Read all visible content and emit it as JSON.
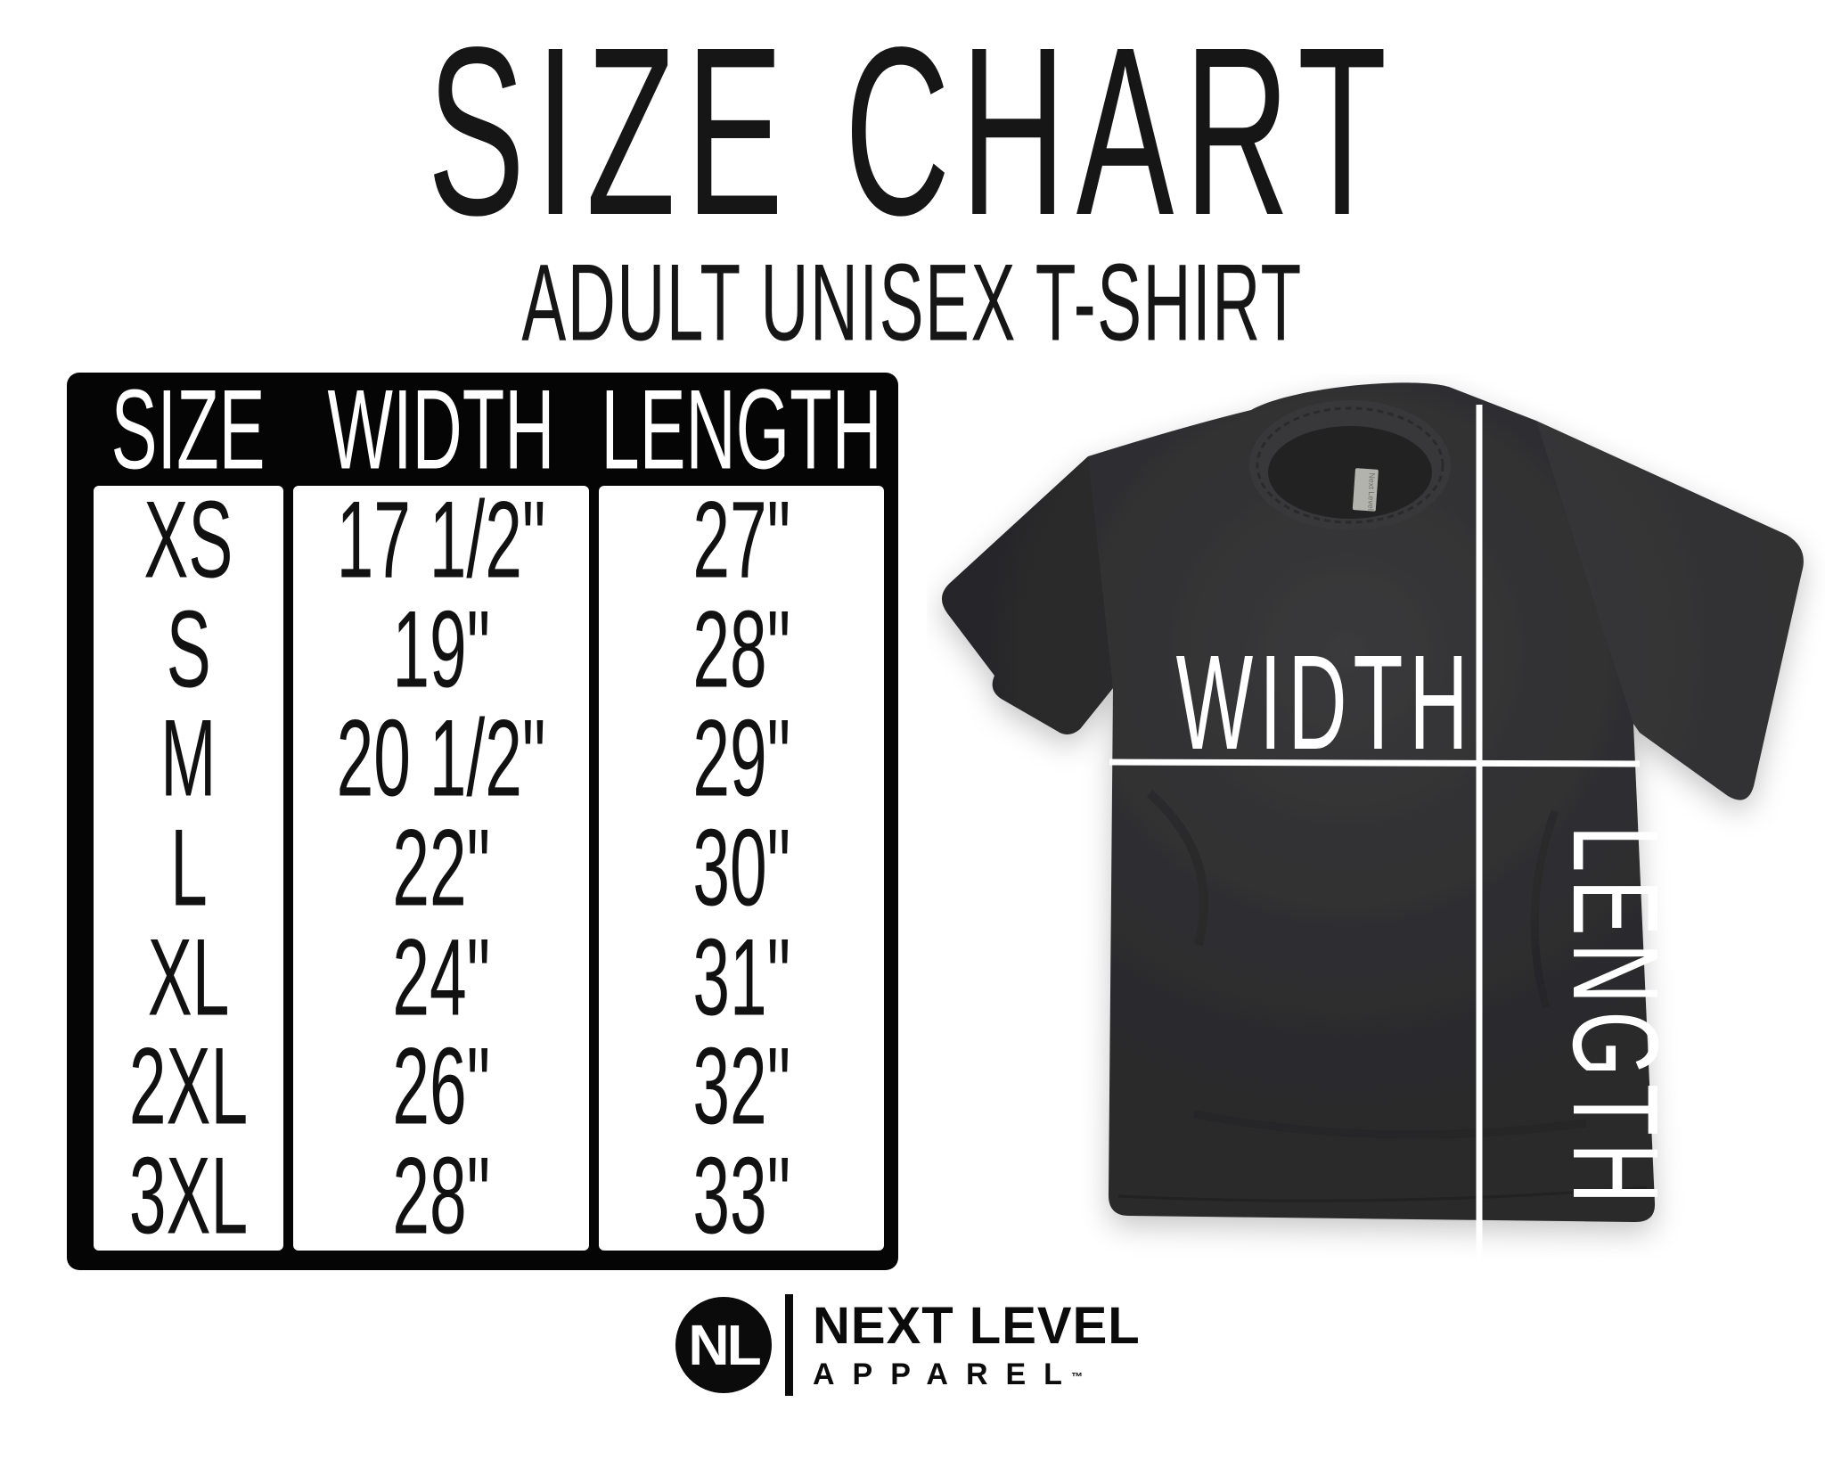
{
  "title": "SIZE CHART",
  "subtitle": "ADULT UNISEX T-SHIRT",
  "table": {
    "columns": [
      "SIZE",
      "WIDTH",
      "LENGTH"
    ],
    "rows": [
      {
        "size": "XS",
        "width": "17 1/2\"",
        "length": "27\""
      },
      {
        "size": "S",
        "width": "19\"",
        "length": "28\""
      },
      {
        "size": "M",
        "width": "20 1/2\"",
        "length": "29\""
      },
      {
        "size": "L",
        "width": "22\"",
        "length": "30\""
      },
      {
        "size": "XL",
        "width": "24\"",
        "length": "31\""
      },
      {
        "size": "2XL",
        "width": "26\"",
        "length": "32\""
      },
      {
        "size": "3XL",
        "width": "28\"",
        "length": "33\""
      }
    ]
  },
  "diagram": {
    "width_label": "WIDTH",
    "length_label": "LENGTH",
    "tag_text": "Next Level"
  },
  "logo": {
    "monogram": "NL",
    "name_line1": "NEXT LEVEL",
    "name_line2": "APPAREL",
    "trademark": "™"
  },
  "colors": {
    "background": "#ffffff",
    "ink": "#161616",
    "table_bg": "#050505",
    "cell_bg": "#ffffff",
    "shirt": "#2d2d2f",
    "measure_line": "#ffffff"
  }
}
